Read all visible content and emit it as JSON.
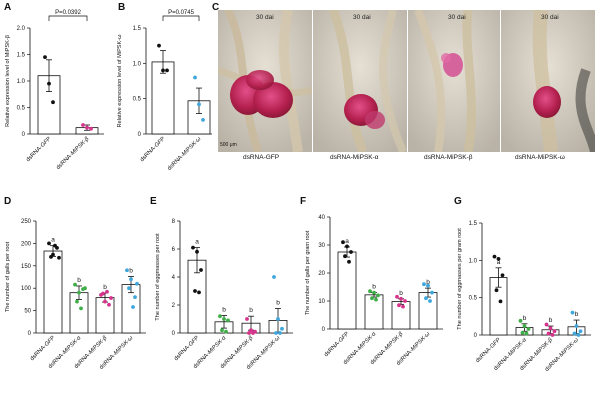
{
  "figure": {
    "panels": {
      "A": "A",
      "B": "B",
      "C": "C",
      "D": "D",
      "E": "E",
      "F": "F",
      "G": "G"
    },
    "photos": {
      "time_label": "30 dai",
      "scale_bar": "500 μm",
      "captions": [
        "dsRNA-GFP",
        "dsRNA-MiPSK-α",
        "dsRNA-MiPSK-β",
        "dsRNA-MiPSK-ω"
      ]
    }
  },
  "chart_data": [
    {
      "id": "A",
      "type": "bar",
      "categories": [
        "dsRNA-GFP",
        "dsRNA-MiPSK-β"
      ],
      "values": [
        1.1,
        0.12
      ],
      "errors": [
        0.3,
        0.05
      ],
      "points": [
        [
          1.45,
          0.95,
          0.6
        ],
        [
          0.17,
          0.12,
          0.1
        ]
      ],
      "point_colors": [
        "#111111",
        "#d6338c"
      ],
      "ylabel": "Relative expression level of MiPSK-β",
      "ylim": [
        0,
        2
      ],
      "yticks": [
        0,
        0.5,
        1.0,
        1.5,
        2.0
      ],
      "ytick_labels": [
        "0",
        "0.5",
        "1.0",
        "1.5",
        "2.0"
      ],
      "significance": [
        {
          "pair": [
            0,
            1
          ],
          "label": "P=0.0392"
        }
      ]
    },
    {
      "id": "B",
      "type": "bar",
      "categories": [
        "dsRNA-GFP",
        "dsRNA-MiPSK-ω"
      ],
      "values": [
        1.02,
        0.47
      ],
      "errors": [
        0.16,
        0.18
      ],
      "points": [
        [
          1.25,
          0.9,
          0.9
        ],
        [
          0.8,
          0.42,
          0.2
        ]
      ],
      "point_colors": [
        "#111111",
        "#3fa7dc"
      ],
      "ylabel": "Relative expression level of MiPSK-ω",
      "ylim": [
        0,
        1.5
      ],
      "yticks": [
        0,
        0.5,
        1.0,
        1.5
      ],
      "ytick_labels": [
        "0",
        "0.5",
        "1.0",
        "1.5"
      ],
      "significance": [
        {
          "pair": [
            0,
            1
          ],
          "label": "P=0.0745"
        }
      ]
    },
    {
      "id": "D",
      "type": "bar",
      "categories": [
        "dsRNA-GFP",
        "dsRNA-MiPSK-α",
        "dsRNA-MiPSK-β",
        "dsRNA-MiPSK-ω"
      ],
      "values": [
        183,
        90,
        79,
        108
      ],
      "errors": [
        12,
        15,
        10,
        18
      ],
      "points": [
        [
          200,
          175,
          190,
          170,
          195,
          168
        ],
        [
          108,
          90,
          98,
          70,
          55,
          100
        ],
        [
          85,
          70,
          63,
          88,
          92,
          78
        ],
        [
          140,
          120,
          80,
          100,
          58,
          110
        ]
      ],
      "point_colors": [
        "#111111",
        "#3fae49",
        "#d6338c",
        "#3fa7dc"
      ],
      "letters": [
        "a",
        "b",
        "b",
        "b"
      ],
      "ylabel": "The number of galls per root",
      "ylim": [
        0,
        250
      ],
      "yticks": [
        0,
        50,
        100,
        150,
        200,
        250
      ],
      "ytick_labels": [
        "0",
        "50",
        "100",
        "150",
        "200",
        "250"
      ]
    },
    {
      "id": "E",
      "type": "bar",
      "categories": [
        "dsRNA-GFP",
        "dsRNA-MiPSK-α",
        "dsRNA-MiPSK-β",
        "dsRNA-MiPSK-ω"
      ],
      "values": [
        5.2,
        0.8,
        0.7,
        0.9
      ],
      "errors": [
        0.9,
        0.45,
        0.5,
        0.85
      ],
      "points": [
        [
          6.1,
          5.8,
          4.5,
          3.0,
          2.9
        ],
        [
          1.2,
          1.0,
          0.9,
          0.2,
          0.1
        ],
        [
          1.0,
          0.2,
          0.1,
          0,
          0
        ],
        [
          4.0,
          1.0,
          0.3,
          0,
          0
        ]
      ],
      "point_colors": [
        "#111111",
        "#3fae49",
        "#d6338c",
        "#3fa7dc"
      ],
      "letters": [
        "a",
        "b",
        "b",
        "b"
      ],
      "ylabel": "The number of eggmasses per root",
      "ylim": [
        0,
        8
      ],
      "yticks": [
        0,
        2,
        4,
        6,
        8
      ],
      "ytick_labels": [
        "0",
        "2",
        "4",
        "6",
        "8"
      ]
    },
    {
      "id": "F",
      "type": "bar",
      "categories": [
        "dsRNA-GFP",
        "dsRNA-MiPSK-α",
        "dsRNA-MiPSK-β",
        "dsRNA-MiPSK-ω"
      ],
      "values": [
        27.5,
        12.2,
        9.8,
        13.0
      ],
      "errors": [
        1.8,
        0.8,
        1.0,
        1.6
      ],
      "points": [
        [
          31,
          29.5,
          27.5,
          26,
          24
        ],
        [
          13.5,
          13,
          12,
          11,
          10.5
        ],
        [
          11.5,
          10.8,
          10,
          8.5,
          8
        ],
        [
          16,
          15.5,
          13,
          11,
          10
        ]
      ],
      "point_colors": [
        "#111111",
        "#3fae49",
        "#d6338c",
        "#3fa7dc"
      ],
      "letters": [
        "a",
        "b",
        "b",
        "b"
      ],
      "ylabel": "The number of galls per gram root",
      "ylim": [
        0,
        40
      ],
      "yticks": [
        0,
        10,
        20,
        30,
        40
      ],
      "ytick_labels": [
        "0",
        "10",
        "20",
        "30",
        "40"
      ]
    },
    {
      "id": "G",
      "type": "bar",
      "categories": [
        "dsRNA-GFP",
        "dsRNA-MiPSK-α",
        "dsRNA-MiPSK-β",
        "dsRNA-MiPSK-ω"
      ],
      "values": [
        0.77,
        0.1,
        0.07,
        0.11
      ],
      "errors": [
        0.13,
        0.05,
        0.05,
        0.09
      ],
      "points": [
        [
          1.05,
          1.02,
          0.8,
          0.6,
          0.45
        ],
        [
          0.19,
          0.12,
          0.08,
          0.03,
          0.02
        ],
        [
          0.14,
          0.09,
          0.05,
          0.02,
          0
        ],
        [
          0.3,
          0.12,
          0.05,
          0.02,
          0
        ]
      ],
      "point_colors": [
        "#111111",
        "#3fae49",
        "#d6338c",
        "#3fa7dc"
      ],
      "letters": [
        "a",
        "b",
        "b",
        "b"
      ],
      "ylabel": "The number of eggmasses per gram root",
      "ylim": [
        0,
        1.5
      ],
      "yticks": [
        0,
        0.5,
        1.0,
        1.5
      ],
      "ytick_labels": [
        "0",
        "0.5",
        "1.0",
        "1.5"
      ]
    }
  ]
}
